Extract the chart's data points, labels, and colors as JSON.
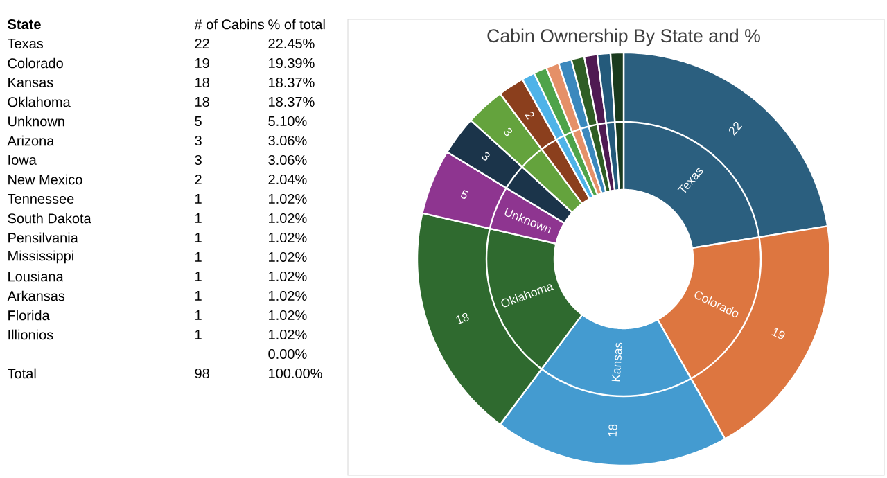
{
  "chart_data": {
    "type": "donut",
    "title": "Cabin Ownership By State and %",
    "categories": [
      "Texas",
      "Colorado",
      "Kansas",
      "Oklahoma",
      "Unknown",
      null,
      null,
      null,
      null,
      null,
      null,
      null,
      null,
      null,
      null,
      null
    ],
    "values": [
      22,
      19,
      18,
      18,
      5,
      3,
      3,
      2,
      1,
      1,
      1,
      1,
      1,
      1,
      1,
      1
    ],
    "value_labels": [
      "22",
      "19",
      "18",
      "18",
      "5",
      "3",
      "3",
      "2",
      null,
      null,
      null,
      null,
      null,
      null,
      null,
      null
    ],
    "colors": [
      "#2b5f7f",
      "#dd7640",
      "#449bd0",
      "#2f6a2f",
      "#8e3590",
      "#1b344a",
      "#64a33d",
      "#8b3f1d",
      "#4fb3e8",
      "#4ea34a",
      "#e59068",
      "#3b88bd",
      "#2f5e25",
      "#4f1a52",
      "#245a7b",
      "#1a3a1e"
    ],
    "annotations": [
      "State",
      "# of Cabins",
      "% of total",
      "Texas",
      "22",
      "22.45%",
      "Colorado",
      "19",
      "19.39%",
      "Kansas",
      "18",
      "18.37%",
      "Oklahoma",
      "18",
      "18.37%",
      "Unknown",
      "5",
      "5.10%",
      "Arizona",
      "3",
      "3.06%",
      "Iowa",
      "3",
      "3.06%",
      "New Mexico",
      "2",
      "2.04%",
      "Tennessee",
      "1",
      "1.02%",
      "South Dakota",
      "1",
      "1.02%",
      "Pensilvania",
      "1",
      "1.02%",
      "Mississippi",
      "1",
      "1.02%",
      "Lousiana",
      "1",
      "1.02%",
      "Arkansas",
      "1",
      "1.02%",
      "Florida",
      "1",
      "1.02%",
      "Illionios",
      "1",
      "1.02%",
      "0.00%",
      "Total",
      "98",
      "100.00%"
    ]
  }
}
